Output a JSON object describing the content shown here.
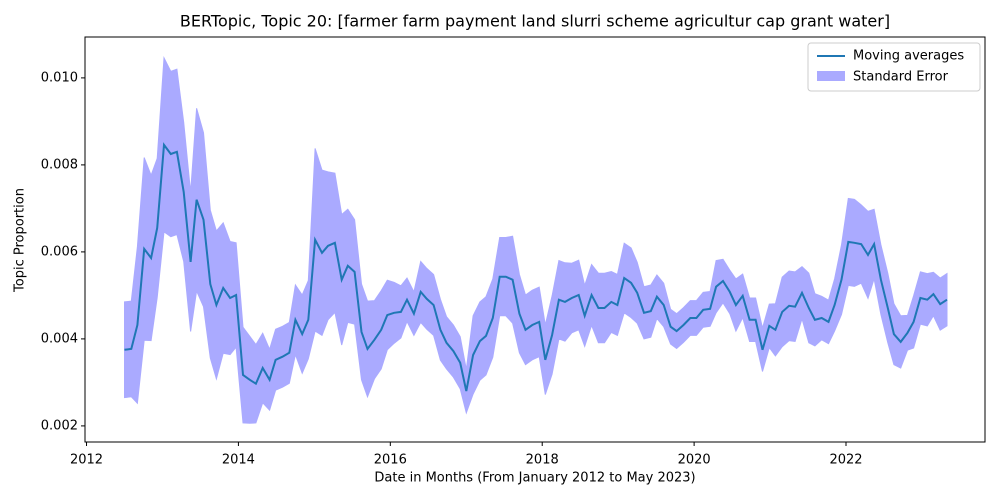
{
  "chart_data": {
    "type": "line",
    "title": "BERTopic, Topic 20: [farmer farm payment land slurri scheme agricultur cap grant water]",
    "xlabel": "Date in Months (From January 2012 to May 2023)",
    "ylabel": "Topic Proportion",
    "x": [
      2012.5,
      2012.59,
      2012.67,
      2012.76,
      2012.85,
      2012.93,
      2013.02,
      2013.11,
      2013.19,
      2013.28,
      2013.37,
      2013.45,
      2013.54,
      2013.63,
      2013.71,
      2013.8,
      2013.89,
      2013.97,
      2014.06,
      2014.15,
      2014.23,
      2014.32,
      2014.41,
      2014.49,
      2014.58,
      2014.67,
      2014.75,
      2014.84,
      2014.92,
      2015.01,
      2015.1,
      2015.18,
      2015.27,
      2015.36,
      2015.44,
      2015.53,
      2015.62,
      2015.7,
      2015.79,
      2015.88,
      2015.96,
      2016.05,
      2016.14,
      2016.22,
      2016.31,
      2016.4,
      2016.48,
      2016.57,
      2016.66,
      2016.74,
      2016.83,
      2016.92,
      2017.0,
      2017.09,
      2017.18,
      2017.26,
      2017.35,
      2017.44,
      2017.52,
      2017.61,
      2017.7,
      2017.78,
      2017.87,
      2017.96,
      2018.04,
      2018.13,
      2018.22,
      2018.3,
      2018.39,
      2018.48,
      2018.56,
      2018.65,
      2018.74,
      2018.82,
      2018.91,
      2018.99,
      2019.08,
      2019.17,
      2019.25,
      2019.34,
      2019.43,
      2019.51,
      2019.6,
      2019.69,
      2019.77,
      2019.86,
      2019.95,
      2020.03,
      2020.12,
      2020.21,
      2020.29,
      2020.38,
      2020.47,
      2020.55,
      2020.64,
      2020.73,
      2020.81,
      2020.9,
      2020.99,
      2021.07,
      2021.16,
      2021.25,
      2021.33,
      2021.42,
      2021.51,
      2021.59,
      2021.68,
      2021.77,
      2021.85,
      2021.94,
      2022.03,
      2022.11,
      2022.2,
      2022.29,
      2022.37,
      2022.46,
      2022.55,
      2022.63,
      2022.72,
      2022.81,
      2022.89,
      2022.98,
      2023.07,
      2023.15,
      2023.24,
      2023.33
    ],
    "series": [
      {
        "name": "Moving averages",
        "color": "#1f77b4",
        "values": [
          0.00375,
          0.00377,
          0.00432,
          0.00607,
          0.00586,
          0.00655,
          0.00846,
          0.00825,
          0.0083,
          0.00738,
          0.00577,
          0.0072,
          0.00674,
          0.00526,
          0.00478,
          0.00517,
          0.00494,
          0.00501,
          0.00317,
          0.00306,
          0.00297,
          0.00333,
          0.00306,
          0.00352,
          0.00359,
          0.00368,
          0.00444,
          0.00411,
          0.00444,
          0.00628,
          0.00598,
          0.00614,
          0.00621,
          0.00536,
          0.00568,
          0.00554,
          0.00416,
          0.00377,
          0.00398,
          0.00421,
          0.00455,
          0.0046,
          0.00462,
          0.0049,
          0.00458,
          0.00508,
          0.00492,
          0.00478,
          0.00421,
          0.00391,
          0.00372,
          0.00345,
          0.0028,
          0.00363,
          0.00395,
          0.00407,
          0.00448,
          0.00543,
          0.00543,
          0.00536,
          0.00458,
          0.00421,
          0.00432,
          0.00439,
          0.00352,
          0.00409,
          0.0049,
          0.00485,
          0.00494,
          0.00501,
          0.00453,
          0.00501,
          0.00471,
          0.00471,
          0.00485,
          0.00478,
          0.0054,
          0.00529,
          0.00506,
          0.0046,
          0.00464,
          0.00497,
          0.00478,
          0.00428,
          0.00418,
          0.00432,
          0.00448,
          0.00448,
          0.00467,
          0.00469,
          0.0052,
          0.00533,
          0.00508,
          0.00478,
          0.00499,
          0.00444,
          0.00444,
          0.00375,
          0.0043,
          0.00421,
          0.00462,
          0.00476,
          0.00474,
          0.00506,
          0.00471,
          0.00444,
          0.00448,
          0.00439,
          0.00478,
          0.00536,
          0.00623,
          0.00621,
          0.00618,
          0.00593,
          0.00618,
          0.00536,
          0.00471,
          0.00411,
          0.00393,
          0.00414,
          0.00439,
          0.00494,
          0.0049,
          0.00503,
          0.0048,
          0.0049
        ]
      }
    ],
    "band": {
      "name": "Standard Error",
      "color": "#aaaaff",
      "errors": [
        0.0011,
        0.0011,
        0.0018,
        0.0021,
        0.0019,
        0.0016,
        0.002,
        0.0019,
        0.0019,
        0.0016,
        0.0016,
        0.0021,
        0.002,
        0.0017,
        0.0017,
        0.0015,
        0.0013,
        0.0012,
        0.0011,
        0.001,
        0.0009,
        0.0008,
        0.0007,
        0.0007,
        0.0007,
        0.0007,
        0.0008,
        0.0009,
        0.0009,
        0.0021,
        0.0019,
        0.0017,
        0.0016,
        0.0015,
        0.0013,
        0.0012,
        0.0011,
        0.0011,
        0.0009,
        0.0009,
        0.0008,
        0.0007,
        0.0006,
        0.0005,
        0.0005,
        0.0007,
        0.0007,
        0.0007,
        0.0007,
        0.0006,
        0.0006,
        0.0006,
        0.0005,
        0.0009,
        0.0009,
        0.0009,
        0.0009,
        0.0009,
        0.0009,
        0.001,
        0.0009,
        0.0008,
        0.0008,
        0.0008,
        0.0008,
        0.0009,
        0.0009,
        0.0009,
        0.0008,
        0.0008,
        0.0007,
        0.0007,
        0.0008,
        0.0008,
        0.0007,
        0.0007,
        0.0008,
        0.0008,
        0.0007,
        0.0006,
        0.0006,
        0.0005,
        0.0005,
        0.0004,
        0.0004,
        0.0004,
        0.0004,
        0.0004,
        0.0004,
        0.0004,
        0.0006,
        0.0005,
        0.0005,
        0.0006,
        0.0005,
        0.0005,
        0.0005,
        0.0005,
        0.0005,
        0.0006,
        0.0008,
        0.0008,
        0.0008,
        0.0006,
        0.0008,
        0.0006,
        0.0005,
        0.0005,
        0.0006,
        0.0008,
        0.001,
        0.001,
        0.0009,
        0.001,
        0.0008,
        0.0008,
        0.0008,
        0.0007,
        0.0006,
        0.0004,
        0.0006,
        0.0006,
        0.0006,
        0.0005,
        0.0006,
        0.0006
      ]
    },
    "xlim": [
      2011.98,
      2023.83
    ],
    "xticks": [
      2012,
      2014,
      2016,
      2018,
      2020,
      2022
    ],
    "ylim": [
      0.00163,
      0.01094
    ],
    "yticks": [
      0.002,
      0.004,
      0.006,
      0.008,
      {
        "value": 0.01,
        "label": "0.010"
      }
    ],
    "legend": "upper right"
  }
}
